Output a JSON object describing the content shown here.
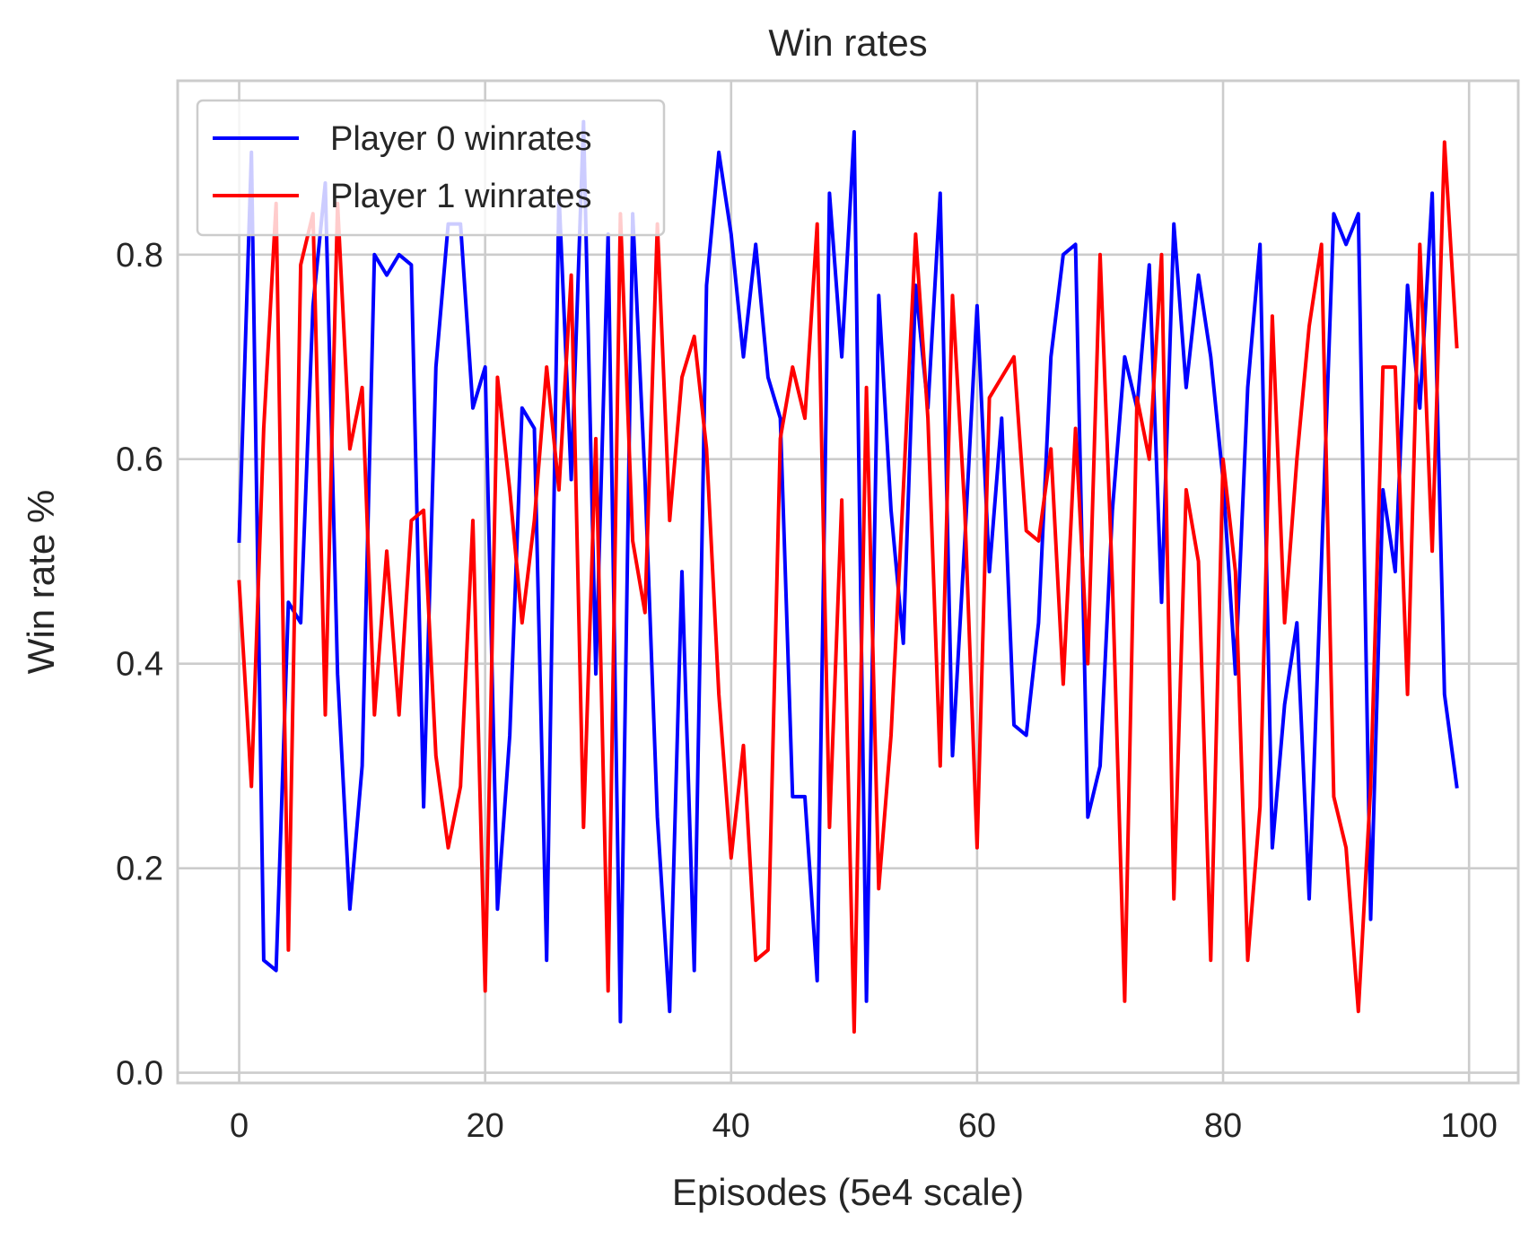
{
  "chart_data": {
    "type": "line",
    "title": "Win rates",
    "xlabel": "Episodes (5e4 scale)",
    "ylabel": "Win rate %",
    "xlim": [
      -5,
      104
    ],
    "ylim": [
      -0.01,
      0.97
    ],
    "xticks": [
      0,
      20,
      40,
      60,
      80,
      100
    ],
    "xtick_labels": [
      "0",
      "20",
      "40",
      "60",
      "80",
      "100"
    ],
    "yticks": [
      0.0,
      0.2,
      0.4,
      0.6,
      0.8
    ],
    "ytick_labels": [
      "0.0",
      "0.2",
      "0.4",
      "0.6",
      "0.8"
    ],
    "grid": true,
    "legend_position": "upper left",
    "series": [
      {
        "name": "Player 0 winrates",
        "color": "#0000ff",
        "x": [
          0,
          1,
          2,
          3,
          4,
          5,
          6,
          7,
          8,
          9,
          10,
          11,
          12,
          13,
          14,
          15,
          16,
          17,
          18,
          19,
          20,
          21,
          22,
          23,
          24,
          25,
          26,
          27,
          28,
          29,
          30,
          31,
          32,
          33,
          34,
          35,
          36,
          37,
          38,
          39,
          40,
          41,
          42,
          43,
          44,
          45,
          46,
          47,
          48,
          49,
          50,
          51,
          52,
          53,
          54,
          55,
          56,
          57,
          58,
          59,
          60,
          61,
          62,
          63,
          64,
          65,
          66,
          67,
          68,
          69,
          70,
          71,
          72,
          73,
          74,
          75,
          76,
          77,
          78,
          79,
          80,
          81,
          82,
          83,
          84,
          85,
          86,
          87,
          88,
          89,
          90,
          91,
          92,
          93,
          94,
          95,
          96,
          97,
          98,
          99
        ],
        "values": [
          0.52,
          0.9,
          0.11,
          0.1,
          0.46,
          0.44,
          0.75,
          0.87,
          0.39,
          0.16,
          0.3,
          0.8,
          0.78,
          0.8,
          0.79,
          0.26,
          0.69,
          0.83,
          0.83,
          0.65,
          0.69,
          0.16,
          0.33,
          0.65,
          0.63,
          0.11,
          0.86,
          0.58,
          0.93,
          0.39,
          0.82,
          0.05,
          0.84,
          0.58,
          0.25,
          0.06,
          0.49,
          0.1,
          0.77,
          0.9,
          0.82,
          0.7,
          0.81,
          0.68,
          0.64,
          0.27,
          0.27,
          0.09,
          0.86,
          0.7,
          0.92,
          0.07,
          0.76,
          0.55,
          0.42,
          0.77,
          0.65,
          0.86,
          0.31,
          0.52,
          0.75,
          0.49,
          0.64,
          0.34,
          0.33,
          0.44,
          0.7,
          0.8,
          0.81,
          0.25,
          0.3,
          0.55,
          0.7,
          0.65,
          0.79,
          0.46,
          0.83,
          0.67,
          0.78,
          0.7,
          0.58,
          0.39,
          0.67,
          0.81,
          0.22,
          0.36,
          0.44,
          0.17,
          0.5,
          0.84,
          0.81,
          0.84,
          0.15,
          0.57,
          0.49,
          0.77,
          0.65,
          0.86,
          0.37,
          0.28
        ]
      },
      {
        "name": "Player 1 winrates",
        "color": "#ff0000",
        "x": [
          0,
          1,
          2,
          3,
          4,
          5,
          6,
          7,
          8,
          9,
          10,
          11,
          12,
          13,
          14,
          15,
          16,
          17,
          18,
          19,
          20,
          21,
          22,
          23,
          24,
          25,
          26,
          27,
          28,
          29,
          30,
          31,
          32,
          33,
          34,
          35,
          36,
          37,
          38,
          39,
          40,
          41,
          42,
          43,
          44,
          45,
          46,
          47,
          48,
          49,
          50,
          51,
          52,
          53,
          54,
          55,
          56,
          57,
          58,
          59,
          60,
          61,
          62,
          63,
          64,
          65,
          66,
          67,
          68,
          69,
          70,
          71,
          72,
          73,
          74,
          75,
          76,
          77,
          78,
          79,
          80,
          81,
          82,
          83,
          84,
          85,
          86,
          87,
          88,
          89,
          90,
          91,
          92,
          93,
          94,
          95,
          96,
          97,
          98,
          99
        ],
        "values": [
          0.48,
          0.28,
          0.63,
          0.85,
          0.12,
          0.79,
          0.84,
          0.35,
          0.85,
          0.61,
          0.67,
          0.35,
          0.51,
          0.35,
          0.54,
          0.55,
          0.31,
          0.22,
          0.28,
          0.54,
          0.08,
          0.68,
          0.57,
          0.44,
          0.54,
          0.69,
          0.57,
          0.78,
          0.24,
          0.62,
          0.08,
          0.84,
          0.52,
          0.45,
          0.83,
          0.54,
          0.68,
          0.72,
          0.61,
          0.37,
          0.21,
          0.32,
          0.11,
          0.12,
          0.62,
          0.69,
          0.64,
          0.83,
          0.24,
          0.56,
          0.04,
          0.67,
          0.18,
          0.33,
          0.57,
          0.82,
          0.64,
          0.3,
          0.76,
          0.55,
          0.22,
          0.66,
          0.68,
          0.7,
          0.53,
          0.52,
          0.61,
          0.38,
          0.63,
          0.4,
          0.8,
          0.48,
          0.07,
          0.66,
          0.6,
          0.8,
          0.17,
          0.57,
          0.5,
          0.11,
          0.6,
          0.49,
          0.11,
          0.26,
          0.74,
          0.44,
          0.6,
          0.73,
          0.81,
          0.27,
          0.22,
          0.06,
          0.28,
          0.69,
          0.69,
          0.37,
          0.81,
          0.51,
          0.91,
          0.71
        ]
      }
    ]
  }
}
